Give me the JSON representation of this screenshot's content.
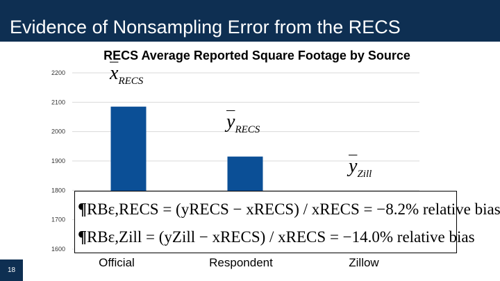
{
  "slide": {
    "title": "Evidence of Nonsampling Error from the RECS",
    "page_number": "18"
  },
  "colors": {
    "header_bg": "#0e2f52",
    "bar": "#0b4f96"
  },
  "chart_data": {
    "type": "bar",
    "title": "RECS Average Reported Square Footage by Source",
    "categories": [
      "Official",
      "Respondent",
      "Zillow"
    ],
    "values": [
      2085,
      1915,
      null
    ],
    "ylim": [
      1600,
      2200
    ],
    "yticks": [
      "2200",
      "2100",
      "2000",
      "1900",
      "1800",
      "1700",
      "1600"
    ],
    "grid": true,
    "bar_labels": [
      {
        "symbol": "x",
        "subscript": "RECS"
      },
      {
        "symbol": "y",
        "subscript": "RECS"
      },
      {
        "symbol": "y",
        "subscript": "Zill"
      }
    ]
  },
  "formulas": {
    "line1": "RBε,RECS = (yRECS − xRECS) / xRECS = −8.2% relative bias",
    "line2": "RBε,Zill = (yZill − xRECS) / xRECS = −14.0% relative bias"
  }
}
